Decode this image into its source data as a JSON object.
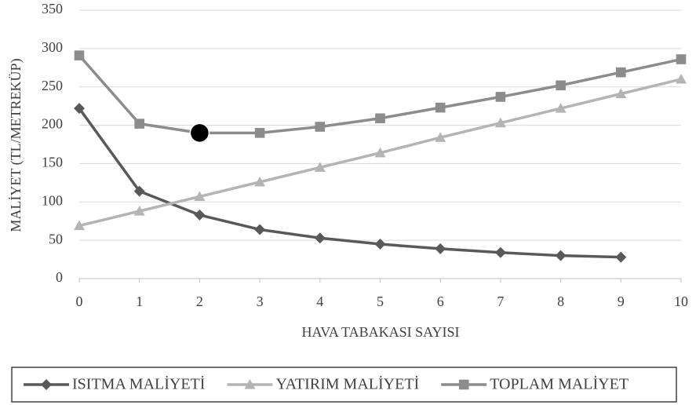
{
  "chart_data": {
    "type": "line",
    "xlabel": "HAVA TABAKASI SAYISI",
    "ylabel": "MALİYET (TL/METREKÜP)",
    "x": [
      0,
      1,
      2,
      3,
      4,
      5,
      6,
      7,
      8,
      9,
      10
    ],
    "xlim": [
      0,
      10
    ],
    "xticks": [
      0,
      1,
      2,
      3,
      4,
      5,
      6,
      7,
      8,
      9,
      10
    ],
    "ylim": [
      0,
      350
    ],
    "yticks": [
      0,
      50,
      100,
      150,
      200,
      250,
      300,
      350
    ],
    "grid": true,
    "legend": "bottom",
    "series": [
      {
        "name": "ISITMA MALİYETİ",
        "color": "#595959",
        "marker": "diamond",
        "values": [
          222,
          114,
          83,
          64,
          53,
          45,
          39,
          34,
          30,
          28,
          null
        ]
      },
      {
        "name": "YATIRIM MALİYETİ",
        "color": "#b4b4b4",
        "marker": "triangle",
        "values": [
          69,
          88,
          107,
          126,
          145,
          164,
          184,
          203,
          222,
          241,
          260
        ]
      },
      {
        "name": "TOPLAM MALİYET",
        "color": "#8c8c8c",
        "marker": "square",
        "values": [
          291,
          202,
          190,
          190,
          198,
          209,
          223,
          237,
          252,
          269,
          286
        ]
      }
    ],
    "highlight_point": {
      "series": 2,
      "index": 2,
      "color": "#000000"
    }
  }
}
